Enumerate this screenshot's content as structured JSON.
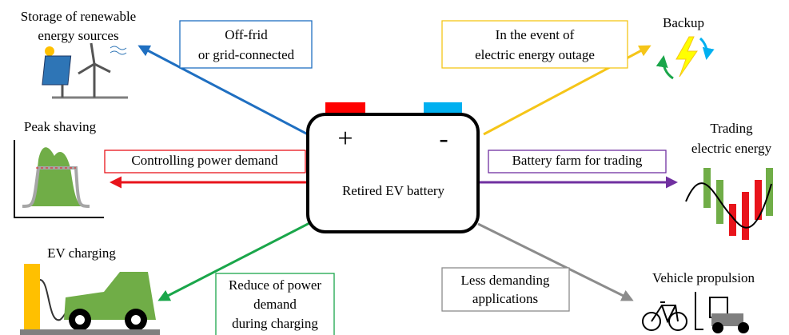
{
  "battery": {
    "label": "Retired EV battery",
    "plus": "+",
    "minus": "-"
  },
  "applications": [
    {
      "title": [
        "Storage of renewable",
        "energy sources"
      ],
      "connector": [
        "Off-frid",
        "or grid-connected"
      ]
    },
    {
      "title": [
        "Peak shaving"
      ],
      "connector": [
        "Controlling power demand"
      ]
    },
    {
      "title": [
        "EV charging"
      ],
      "connector": [
        "Reduce of power",
        "demand",
        "during charging"
      ]
    },
    {
      "title": [
        "Backup"
      ],
      "connector": [
        "In the event of",
        "electric energy outage"
      ]
    },
    {
      "title": [
        "Trading",
        "electric energy"
      ],
      "connector": [
        "Battery farm for trading"
      ]
    },
    {
      "title": [
        "Vehicle propulsion"
      ],
      "connector": [
        "Less demanding",
        "applications"
      ]
    }
  ]
}
